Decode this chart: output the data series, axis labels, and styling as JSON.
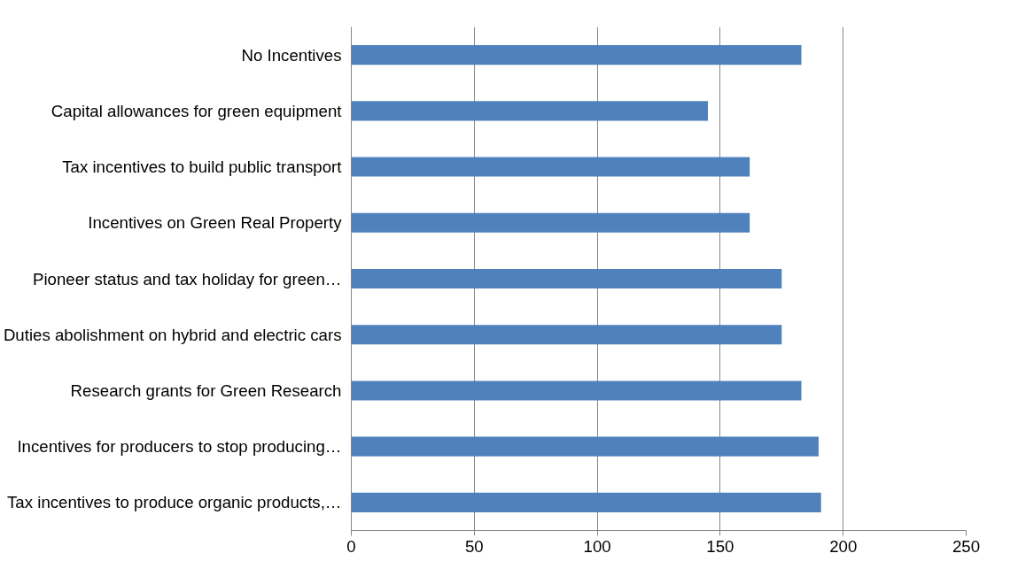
{
  "chart_data": {
    "type": "bar",
    "orientation": "horizontal",
    "categories": [
      "No Incentives",
      "Capital allowances for green equipment",
      "Tax incentives to build public transport",
      "Incentives on Green Real Property",
      "Pioneer status and tax holiday for green…",
      "Duties abolishment on hybrid and electric cars",
      "Research grants for Green Research",
      "Incentives for producers to stop producing…",
      "Tax incentives to produce organic products,…"
    ],
    "values": [
      183,
      145,
      162,
      162,
      175,
      175,
      183,
      190,
      191
    ],
    "color": "#4f81bd",
    "xlim": [
      0,
      250
    ],
    "xticks": [
      0,
      50,
      100,
      150,
      200,
      250
    ],
    "grid": "x"
  }
}
